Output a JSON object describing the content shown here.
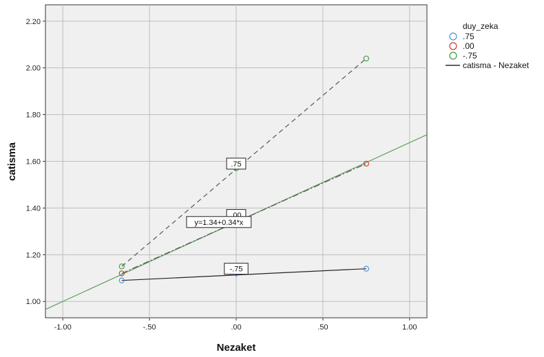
{
  "chart_data": {
    "type": "scatter",
    "title": "",
    "xlabel": "Nezaket",
    "ylabel": "catisma",
    "xlim": [
      -1.1,
      1.1
    ],
    "ylim": [
      0.93,
      2.27
    ],
    "x_ticks": [
      -1.0,
      -0.5,
      0.0,
      0.5,
      1.0
    ],
    "x_tick_labels": [
      "-1.00",
      "-.50",
      ".00",
      ".50",
      "1.00"
    ],
    "y_ticks": [
      1.0,
      1.2,
      1.4,
      1.6,
      1.8,
      2.0,
      2.2
    ],
    "y_tick_labels": [
      "1.00",
      "1.20",
      "1.40",
      "1.60",
      "1.80",
      "2.00",
      "2.20"
    ],
    "grid": true,
    "legend": {
      "title": "duy_zeka",
      "placement": "right",
      "items": [
        {
          "label": ".75",
          "marker": "circle",
          "color": "#4a90d9"
        },
        {
          "label": ".00",
          "marker": "circle",
          "color": "#d9342b"
        },
        {
          "label": "-.75",
          "marker": "circle",
          "color": "#3a9a3a"
        },
        {
          "label": "catisma - Nezaket",
          "marker": "line",
          "color": "#000000"
        }
      ]
    },
    "series": [
      {
        "name": ".75",
        "color": "#4a90d9",
        "points": [
          {
            "x": -0.66,
            "y": 1.09
          },
          {
            "x": 0.0,
            "y": 1.12
          },
          {
            "x": 0.75,
            "y": 1.14
          }
        ]
      },
      {
        "name": ".00",
        "color": "#d9342b",
        "points": [
          {
            "x": -0.66,
            "y": 1.12
          },
          {
            "x": 0.0,
            "y": 1.35
          },
          {
            "x": 0.75,
            "y": 1.59
          }
        ]
      },
      {
        "name": "-.75",
        "color": "#3a9a3a",
        "points": [
          {
            "x": -0.66,
            "y": 1.15
          },
          {
            "x": 0.0,
            "y": 1.57
          },
          {
            "x": 0.75,
            "y": 2.04
          }
        ]
      }
    ],
    "lines": [
      {
        "style": "solid",
        "color": "#222222",
        "points": [
          {
            "x": -0.66,
            "y": 1.09
          },
          {
            "x": 0.75,
            "y": 1.14
          }
        ]
      },
      {
        "style": "dashed",
        "color": "#555555",
        "points": [
          {
            "x": -0.66,
            "y": 1.15
          },
          {
            "x": 0.75,
            "y": 2.04
          }
        ]
      },
      {
        "style": "dashdot",
        "color": "#555555",
        "points": [
          {
            "x": -0.66,
            "y": 1.12
          },
          {
            "x": 0.75,
            "y": 1.59
          }
        ]
      }
    ],
    "fit_line": {
      "color": "#5aa05a",
      "intercept": 1.34,
      "slope": 0.34
    },
    "annotations": [
      {
        "text": ".75",
        "x": 0.0,
        "y": 1.59
      },
      {
        "text": ".00",
        "x": 0.0,
        "y": 1.37
      },
      {
        "text": "-.75",
        "x": 0.0,
        "y": 1.14
      },
      {
        "text": "y=1.34+0.34*x",
        "x": -0.1,
        "y": 1.34
      }
    ]
  }
}
